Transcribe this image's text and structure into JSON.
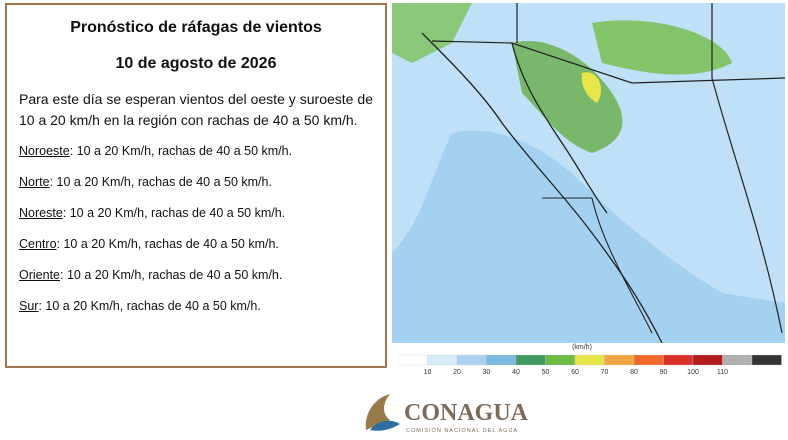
{
  "panel": {
    "title": "Pronóstico de ráfagas de vientos",
    "date": "10 de agosto de 2026",
    "summary": "Para este día se esperan vientos del oeste y suroeste de 10 a 20 km/h en la región con rachas de 40 a 50 km/h.",
    "regions": [
      {
        "name": "Noroeste",
        "text": ":  10 a 20 Km/h, rachas de 40 a 50 km/h."
      },
      {
        "name": "Norte",
        "text": ": 10 a 20 Km/h, rachas de 40 a 50 km/h."
      },
      {
        "name": "Noreste",
        "text": ":  10 a 20 Km/h, rachas de 40 a 50 km/h."
      },
      {
        "name": "Centro",
        "text": ":  10 a 20 Km/h, rachas de 40 a 50 km/h."
      },
      {
        "name": "Oriente",
        "text": ":  10 a 20 Km/h, rachas de 40 a 50 km/h."
      },
      {
        "name": "Sur",
        "text": ":  10 a 20 Km/h, rachas de 40 a 50 km/h."
      }
    ]
  },
  "legend": {
    "unit": "(km/h)",
    "labels": [
      "10",
      "20",
      "30",
      "40",
      "50",
      "60",
      "70",
      "80",
      "90",
      "100",
      "110"
    ]
  },
  "logo": {
    "name": "CONAGUA",
    "subtitle": "COMISIÓN NACIONAL DEL AGUA"
  }
}
